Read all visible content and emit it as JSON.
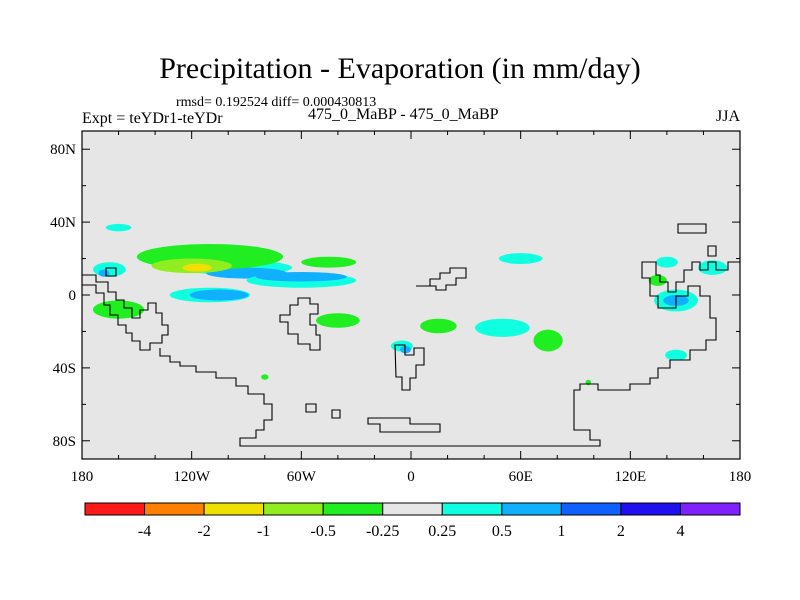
{
  "chart_data": {
    "type": "heatmap",
    "title": "Precipitation - Evaporation (in mm/day)",
    "stats": "rmsd= 0.192524 diff= 0.000430813",
    "left_label": "Expt = teYDr1-teYDr",
    "center_label": "475_0_MaBP - 475_0_MaBP",
    "right_label": "JJA",
    "x_ticks": [
      {
        "lon": -180,
        "label": "180"
      },
      {
        "lon": -120,
        "label": "120W"
      },
      {
        "lon": -60,
        "label": "60W"
      },
      {
        "lon": 0,
        "label": "0"
      },
      {
        "lon": 60,
        "label": "60E"
      },
      {
        "lon": 120,
        "label": "120E"
      },
      {
        "lon": 180,
        "label": "180"
      }
    ],
    "y_ticks": [
      {
        "lat": 80,
        "label": "80N"
      },
      {
        "lat": 40,
        "label": "40N"
      },
      {
        "lat": 0,
        "label": "0"
      },
      {
        "lat": -40,
        "label": "40S"
      },
      {
        "lat": -80,
        "label": "80S"
      }
    ],
    "xlim": [
      -180,
      180
    ],
    "ylim": [
      -90,
      90
    ],
    "levels": [
      "-4",
      "-2",
      "-1",
      "-0.5",
      "-0.25",
      "0.25",
      "0.5",
      "1",
      "2",
      "4"
    ],
    "level_colors": [
      "#ff1a1a",
      "#ff8000",
      "#f0e000",
      "#90ee20",
      "#20ee20",
      "#e6e6e6",
      "#10ffe0",
      "#10b0ff",
      "#1060ff",
      "#2010f0",
      "#8020ff"
    ],
    "background_color": "#e6e6e6",
    "regions": [
      {
        "value_class": "0.25 to 0.5",
        "lon": -160,
        "lat": 37,
        "rx": 7,
        "ry": 2
      },
      {
        "value_class": "0.25 to 0.5",
        "lon": -165,
        "lat": 14,
        "rx": 9,
        "ry": 4
      },
      {
        "value_class": "0.5 to 1",
        "lon": -168,
        "lat": 12,
        "rx": 3,
        "ry": 2
      },
      {
        "value_class": "0.25 to 0.5",
        "lon": -95,
        "lat": 15,
        "rx": 30,
        "ry": 4
      },
      {
        "value_class": "0.5 to 1",
        "lon": -90,
        "lat": 12,
        "rx": 22,
        "ry": 3
      },
      {
        "value_class": "0.25 to 0.5",
        "lon": -60,
        "lat": 8,
        "rx": 30,
        "ry": 4
      },
      {
        "value_class": "0.5 to 1",
        "lon": -60,
        "lat": 10,
        "rx": 25,
        "ry": 2.6
      },
      {
        "value_class": "0.25 to 0.5",
        "lon": -110,
        "lat": 0,
        "rx": 22,
        "ry": 4
      },
      {
        "value_class": "0.5 to 1",
        "lon": -105,
        "lat": 0,
        "rx": 16,
        "ry": 3
      },
      {
        "value_class": "-0.5 to -0.25",
        "lon": -110,
        "lat": 21,
        "rx": 40,
        "ry": 7
      },
      {
        "value_class": "-1 to -0.5",
        "lon": -120,
        "lat": 16,
        "rx": 22,
        "ry": 4
      },
      {
        "value_class": "-2 to -1",
        "lon": -117,
        "lat": 15,
        "rx": 8,
        "ry": 2.2
      },
      {
        "value_class": "-0.5 to -0.25",
        "lon": -45,
        "lat": 18,
        "rx": 15,
        "ry": 3
      },
      {
        "value_class": "-0.5 to -0.25",
        "lon": -160,
        "lat": -8,
        "rx": 14,
        "ry": 5
      },
      {
        "value_class": "-0.5 to -0.25",
        "lon": -40,
        "lat": -14,
        "rx": 12,
        "ry": 4
      },
      {
        "value_class": "-0.5 to -0.25",
        "lon": 15,
        "lat": -17,
        "rx": 10,
        "ry": 4
      },
      {
        "value_class": "-0.5 to -0.25",
        "lon": 75,
        "lat": -25,
        "rx": 8,
        "ry": 6
      },
      {
        "value_class": "0.25 to 0.5",
        "lon": 50,
        "lat": -18,
        "rx": 15,
        "ry": 5
      },
      {
        "value_class": "0.25 to 0.5",
        "lon": 60,
        "lat": 20,
        "rx": 12,
        "ry": 3
      },
      {
        "value_class": "0.25 to 0.5",
        "lon": -5,
        "lat": -28,
        "rx": 6,
        "ry": 3
      },
      {
        "value_class": "0.5 to 1",
        "lon": -3,
        "lat": -30,
        "rx": 3,
        "ry": 2
      },
      {
        "value_class": "0.25 to 0.5",
        "lon": 145,
        "lat": -3,
        "rx": 12,
        "ry": 6
      },
      {
        "value_class": "0.5 to 1",
        "lon": 145,
        "lat": -3,
        "rx": 7,
        "ry": 3
      },
      {
        "value_class": "0.25 to 0.5",
        "lon": 165,
        "lat": 15,
        "rx": 8,
        "ry": 4
      },
      {
        "value_class": "0.25 to 0.5",
        "lon": 140,
        "lat": 18,
        "rx": 6,
        "ry": 3
      },
      {
        "value_class": "0.25 to 0.5",
        "lon": 145,
        "lat": -33,
        "rx": 6,
        "ry": 3
      },
      {
        "value_class": "-0.5 to -0.25",
        "lon": 135,
        "lat": 8,
        "rx": 5,
        "ry": 3
      },
      {
        "value_class": "-0.5 to -0.25",
        "lon": -80,
        "lat": -45,
        "rx": 2,
        "ry": 1.5
      },
      {
        "value_class": "-0.5 to -0.25",
        "lon": 97,
        "lat": -48,
        "rx": 1.5,
        "ry": 1.5
      }
    ]
  }
}
